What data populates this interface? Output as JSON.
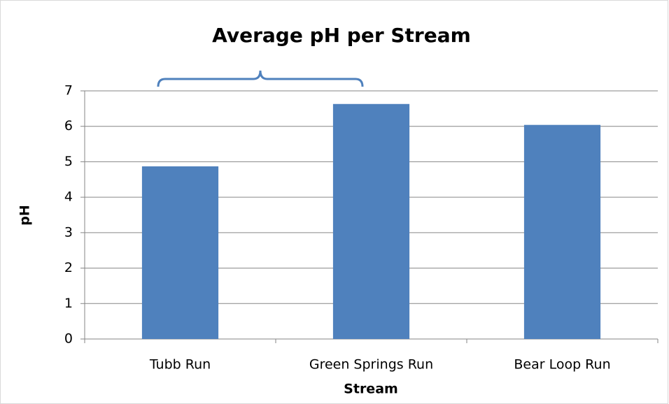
{
  "chart_data": {
    "type": "bar",
    "title": "Average pH per Stream",
    "categories": [
      "Tubb Run",
      "Green Springs Run",
      "Bear Loop Run"
    ],
    "values": [
      4.87,
      6.63,
      6.04
    ],
    "color": "#4f81bd",
    "x_label": "Stream",
    "y_label": "pH",
    "ylim": [
      0,
      7
    ],
    "yticks": [
      0,
      1,
      2,
      3,
      4,
      5,
      6,
      7
    ],
    "grid": true
  }
}
